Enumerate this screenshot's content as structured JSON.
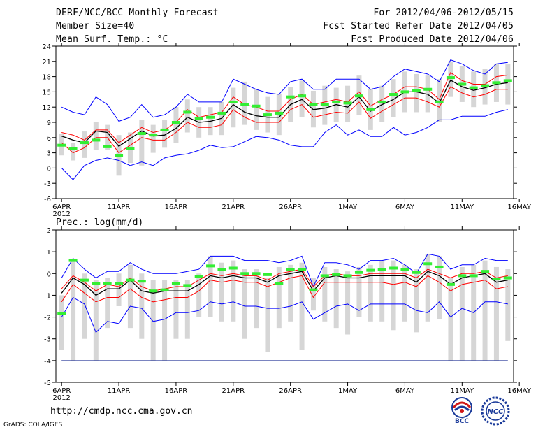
{
  "header": {
    "title": "DERF/NCC/BCC Monthly Forecast",
    "member_size": "Member Size=40",
    "var1_label": "Mean Surf. Temp.: °C",
    "period": "For 2012/04/06-2012/05/15",
    "started": "Fcst Started Refer Date 2012/04/05",
    "produced": "Fcst Produced Date 2012/04/06"
  },
  "footer": {
    "url": "http://cmdp.ncc.cma.gov.cn",
    "credit": "GrADS: COLA/IGES"
  },
  "logos": {
    "bcc": "BCC",
    "ncc": "NCC"
  },
  "colors": {
    "ens_max_min": "#0000ff",
    "ens_spread": "#ff0000",
    "ens_mean": "#000000",
    "obs": "#33ee33",
    "box": "#d6d6d6"
  },
  "chart_data": [
    {
      "type": "line",
      "title": "Mean Surf. Temp.: °C",
      "days": 40,
      "x_tick_labels": [
        "6APR",
        "11APR",
        "16APR",
        "21APR",
        "26APR",
        "1MAY",
        "6MAY",
        "11MAY",
        "16MAY"
      ],
      "x_year_label": "2012",
      "ylim": [
        -6,
        24
      ],
      "y_ticks": [
        -6,
        -3,
        0,
        3,
        6,
        9,
        12,
        15,
        18,
        21,
        24
      ],
      "series": [
        {
          "name": "max",
          "values": [
            0,
            -2.3,
            0.5,
            1.5,
            2,
            1.5,
            0.5,
            1.2,
            0.5,
            2,
            2.5,
            2.8,
            3.5,
            4.5,
            4,
            4.2,
            5.2,
            6.2,
            6,
            5.5,
            4.5,
            4.2,
            4.2,
            7,
            8.5,
            6.5,
            7.5,
            6.2,
            6.2,
            8,
            6.5,
            7,
            8,
            9.5,
            9.5,
            10.2,
            10.2,
            10.2,
            11,
            11.5
          ]
        },
        {
          "name": "upper_spread",
          "values": [
            7,
            6.5,
            5.5,
            7.5,
            7.5,
            5,
            6.5,
            8,
            7,
            7.5,
            9,
            11.5,
            10,
            10.5,
            11,
            14,
            12.5,
            12,
            11.2,
            11.2,
            13.5,
            14.5,
            12.5,
            13,
            13.5,
            13,
            15,
            12.2,
            13.5,
            14.5,
            16,
            16,
            15.5,
            13.5,
            18.8,
            17.2,
            16.5,
            16.5,
            18,
            18.3
          ]
        },
        {
          "name": "mean",
          "values": [
            6.3,
            5.5,
            5,
            7.3,
            7,
            4.3,
            5.8,
            7.3,
            6.3,
            6.5,
            7.8,
            10,
            9,
            9.2,
            9.8,
            12.5,
            11,
            10.3,
            10,
            10,
            12.5,
            13.5,
            11.5,
            11.8,
            12.5,
            12,
            14,
            11.2,
            12.5,
            13.5,
            15,
            15,
            14.5,
            12.8,
            17.3,
            16,
            15.3,
            15.8,
            16.5,
            16.8
          ]
        },
        {
          "name": "lower_spread",
          "values": [
            5,
            3,
            4,
            6,
            6,
            3,
            4.5,
            6,
            5.5,
            5.5,
            7,
            9,
            8,
            8,
            8.5,
            11.5,
            10,
            9,
            9,
            9,
            11.5,
            12.5,
            10,
            10.5,
            11,
            10.8,
            13,
            9.8,
            11.2,
            12.5,
            13.8,
            13.8,
            13,
            12,
            16,
            14.8,
            14,
            14.5,
            15.5,
            15.5
          ]
        },
        {
          "name": "min",
          "values": [
            12,
            11,
            10.5,
            14,
            12.5,
            9.2,
            10,
            12.5,
            10,
            10.5,
            12,
            14.5,
            13,
            13,
            13,
            17.5,
            16.5,
            15.5,
            14.8,
            14.5,
            17,
            17.5,
            15.5,
            15.5,
            17.5,
            17.5,
            17.5,
            15.5,
            16,
            18,
            19.5,
            19,
            18.5,
            17,
            21.3,
            20.5,
            19.2,
            18.5,
            20.5,
            20.8
          ]
        },
        {
          "name": "obs",
          "values": [
            4.5,
            3.8,
            5,
            5.5,
            4.2,
            2.5,
            3.8,
            6.8,
            6.5,
            7.5,
            9,
            11,
            9.8,
            10,
            10.8,
            13,
            12.5,
            12.2,
            10.5,
            10.8,
            14,
            14.2,
            12.5,
            12.5,
            13,
            12.8,
            14.2,
            11.5,
            13,
            14.5,
            15,
            15.2,
            15.5,
            13,
            17.8,
            16.5,
            15.8,
            16.2,
            16.8,
            17.2
          ]
        }
      ],
      "boxes": [
        [
          2.5,
          6.8
        ],
        [
          1.5,
          5
        ],
        [
          2,
          7.2
        ],
        [
          3.5,
          9
        ],
        [
          3.5,
          8.5
        ],
        [
          -1.5,
          6.5
        ],
        [
          1,
          7
        ],
        [
          0.5,
          9.5
        ],
        [
          3,
          8.5
        ],
        [
          4,
          9.5
        ],
        [
          5,
          12
        ],
        [
          7,
          13.5
        ],
        [
          6,
          12
        ],
        [
          6.5,
          12
        ],
        [
          6.5,
          13
        ],
        [
          8,
          15.8
        ],
        [
          8.5,
          17
        ],
        [
          7.5,
          15.5
        ],
        [
          7,
          14
        ],
        [
          6.5,
          14.5
        ],
        [
          9,
          16
        ],
        [
          10,
          17.2
        ],
        [
          8,
          15.2
        ],
        [
          8.5,
          16.2
        ],
        [
          9,
          15.8
        ],
        [
          9,
          16.2
        ],
        [
          10.5,
          18.2
        ],
        [
          7.5,
          15.5
        ],
        [
          9,
          16.2
        ],
        [
          10,
          17.5
        ],
        [
          11,
          19
        ],
        [
          11,
          18.5
        ],
        [
          11,
          18.2
        ],
        [
          9,
          17.5
        ],
        [
          14,
          21
        ],
        [
          13,
          20
        ],
        [
          12,
          19
        ],
        [
          12.5,
          19.5
        ],
        [
          13,
          20.5
        ],
        [
          12.5,
          20.5
        ]
      ]
    },
    {
      "type": "line",
      "title": "Prec.: log(mm/d)",
      "days": 40,
      "x_tick_labels": [
        "6APR",
        "11APR",
        "16APR",
        "21APR",
        "26APR",
        "1MAY",
        "6MAY",
        "11MAY",
        "16MAY"
      ],
      "x_year_label": "2012",
      "ylim": [
        -5,
        2
      ],
      "y_ticks": [
        -5,
        -4,
        -3,
        -2,
        -1,
        0,
        1,
        2
      ],
      "baseline": -4,
      "series": [
        {
          "name": "max",
          "values": [
            -0.2,
            0.7,
            0.2,
            -0.2,
            0.1,
            0.1,
            0.5,
            0.2,
            0,
            0,
            0,
            0.1,
            0.2,
            0.8,
            0.8,
            0.8,
            0.6,
            0.6,
            0.6,
            0.5,
            0.6,
            0.8,
            -0.6,
            0.5,
            0.5,
            0.4,
            0.2,
            0.6,
            0.6,
            0.7,
            0.4,
            0,
            0.9,
            0.8,
            0.2,
            0.4,
            0.4,
            0.7,
            0.6,
            0.6
          ]
        },
        {
          "name": "upper_spread",
          "values": [
            -0.7,
            -0.1,
            -0.4,
            -0.8,
            -0.5,
            -0.6,
            -0.2,
            -0.6,
            -0.8,
            -0.7,
            -0.6,
            -0.6,
            -0.3,
            0,
            -0.1,
            0,
            -0.1,
            -0.1,
            -0.3,
            0,
            0.1,
            0.2,
            -0.6,
            -0.1,
            0,
            -0.1,
            -0.1,
            0,
            0,
            0,
            0,
            -0.2,
            0.2,
            0,
            -0.2,
            0,
            0,
            0.1,
            -0.2,
            -0.1
          ]
        },
        {
          "name": "mean",
          "values": [
            -0.9,
            -0.2,
            -0.5,
            -1,
            -0.7,
            -0.7,
            -0.3,
            -0.8,
            -0.9,
            -0.8,
            -0.8,
            -0.8,
            -0.5,
            -0.1,
            -0.2,
            -0.1,
            -0.2,
            -0.2,
            -0.4,
            -0.1,
            0,
            0.1,
            -0.8,
            -0.2,
            -0.1,
            -0.2,
            -0.2,
            -0.1,
            -0.1,
            -0.1,
            -0.1,
            -0.4,
            0.1,
            -0.1,
            -0.5,
            -0.2,
            -0.1,
            0,
            -0.4,
            -0.3
          ]
        },
        {
          "name": "lower_spread",
          "values": [
            -1.3,
            -0.5,
            -0.9,
            -1.3,
            -1.1,
            -1.1,
            -0.7,
            -1.1,
            -1.3,
            -1.2,
            -1.1,
            -1.1,
            -0.8,
            -0.3,
            -0.4,
            -0.3,
            -0.4,
            -0.4,
            -0.6,
            -0.4,
            -0.2,
            -0.1,
            -1.1,
            -0.4,
            -0.4,
            -0.4,
            -0.4,
            -0.4,
            -0.4,
            -0.5,
            -0.4,
            -0.6,
            -0.1,
            -0.4,
            -0.8,
            -0.5,
            -0.4,
            -0.3,
            -0.7,
            -0.6
          ]
        },
        {
          "name": "min",
          "values": [
            -2,
            -1.1,
            -1.4,
            -2.7,
            -2.2,
            -2.3,
            -1.5,
            -1.6,
            -2.2,
            -2.1,
            -1.8,
            -1.8,
            -1.7,
            -1.3,
            -1.4,
            -1.3,
            -1.5,
            -1.5,
            -1.6,
            -1.6,
            -1.5,
            -1.3,
            -2.1,
            -1.8,
            -1.5,
            -1.4,
            -1.7,
            -1.4,
            -1.4,
            -1.4,
            -1.4,
            -1.7,
            -1.8,
            -1.3,
            -2,
            -1.6,
            -1.8,
            -1.3,
            -1.3,
            -1.4
          ]
        },
        {
          "name": "obs",
          "values": [
            -1.85,
            0.6,
            -0.3,
            -0.45,
            -0.45,
            -0.45,
            -0.3,
            -0.35,
            -0.8,
            -0.75,
            -0.45,
            -0.55,
            -0.15,
            0.35,
            0.2,
            0.25,
            0,
            0,
            -0.05,
            -0.45,
            0.2,
            0.2,
            -0.75,
            -0.1,
            -0.05,
            -0.1,
            0.05,
            0.15,
            0.2,
            0.25,
            0.2,
            0.05,
            0.45,
            0.3,
            -0.5,
            -0.1,
            -0.1,
            0.1,
            -0.25,
            -0.2
          ]
        }
      ],
      "boxes": [
        [
          -3.5,
          -1
        ],
        [
          -4,
          0.6
        ],
        [
          -3,
          0
        ],
        [
          -4,
          -0.3
        ],
        [
          -2.5,
          -0.2
        ],
        [
          -1.5,
          0
        ],
        [
          -2.5,
          0.4
        ],
        [
          -3,
          0
        ],
        [
          -4,
          -0.3
        ],
        [
          -4,
          -0.3
        ],
        [
          -3,
          -0.3
        ],
        [
          -3,
          -0.3
        ],
        [
          -2,
          0
        ],
        [
          -2,
          0.8
        ],
        [
          -2.2,
          0.5
        ],
        [
          -2.2,
          0.6
        ],
        [
          -3,
          0.2
        ],
        [
          -2.5,
          0.2
        ],
        [
          -3.6,
          -0.2
        ],
        [
          -2.5,
          0.3
        ],
        [
          -2.2,
          0.4
        ],
        [
          -3.5,
          0.5
        ],
        [
          -1.7,
          -0.2
        ],
        [
          -2.2,
          0.3
        ],
        [
          -2.5,
          0.2
        ],
        [
          -2.8,
          0.1
        ],
        [
          -2,
          0.3
        ],
        [
          -2.2,
          0.4
        ],
        [
          -2.2,
          0.6
        ],
        [
          -2.6,
          0.6
        ],
        [
          -2.2,
          0.4
        ],
        [
          -2.7,
          0.2
        ],
        [
          -2.2,
          0.9
        ],
        [
          -2.1,
          0.8
        ],
        [
          -4,
          -0.2
        ],
        [
          -4,
          0.3
        ],
        [
          -4,
          0.4
        ],
        [
          -4,
          0.6
        ],
        [
          -4,
          0.3
        ],
        [
          -3.1,
          0.2
        ]
      ]
    }
  ]
}
